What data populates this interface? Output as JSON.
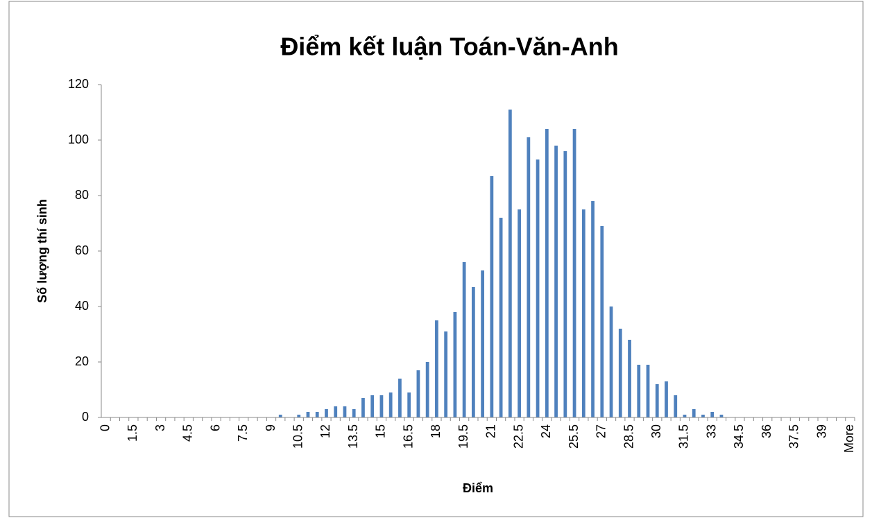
{
  "chart_data": {
    "type": "bar",
    "title": "Điểm kết luận Toán-Văn-Anh",
    "x_label": "Điểm",
    "y_label": "Số lượng thí sinh",
    "categories": [
      "0",
      null,
      null,
      "1.5",
      null,
      null,
      "3",
      null,
      null,
      "4.5",
      null,
      null,
      "6",
      null,
      null,
      "7.5",
      null,
      null,
      "9",
      null,
      null,
      "10.5",
      null,
      null,
      "12",
      null,
      null,
      "13.5",
      null,
      null,
      "15",
      null,
      null,
      "16.5",
      null,
      null,
      "18",
      null,
      null,
      "19.5",
      null,
      null,
      "21",
      null,
      null,
      "22.5",
      null,
      null,
      "24",
      null,
      null,
      "25.5",
      null,
      null,
      "27",
      null,
      null,
      "28.5",
      null,
      null,
      "30",
      null,
      null,
      "31.5",
      null,
      null,
      "33",
      null,
      null,
      "34.5",
      null,
      null,
      "36",
      null,
      null,
      "37.5",
      null,
      null,
      "39",
      null,
      null,
      "More"
    ],
    "values": [
      0,
      0,
      0,
      0,
      0,
      0,
      0,
      0,
      0,
      0,
      0,
      0,
      0,
      0,
      0,
      0,
      0,
      0,
      0,
      1,
      0,
      1,
      2,
      2,
      3,
      4,
      4,
      3,
      7,
      8,
      8,
      9,
      14,
      9,
      17,
      20,
      35,
      31,
      38,
      56,
      47,
      53,
      87,
      72,
      111,
      75,
      101,
      93,
      104,
      98,
      96,
      104,
      75,
      78,
      69,
      40,
      32,
      28,
      19,
      19,
      12,
      13,
      8,
      1,
      3,
      1,
      2,
      1,
      0,
      0,
      0,
      0,
      0,
      0,
      0,
      0,
      0,
      0,
      0,
      0,
      0,
      0
    ],
    "color": "#4f81bd",
    "ylim": [
      0,
      120
    ],
    "yticks": [
      0,
      20,
      40,
      60,
      80,
      100,
      120
    ],
    "grid": false
  }
}
